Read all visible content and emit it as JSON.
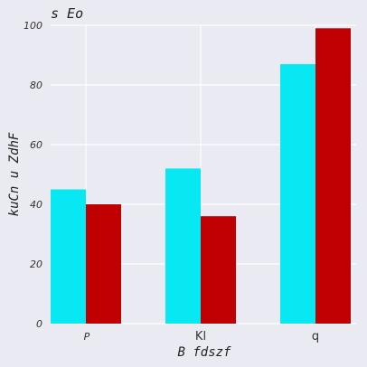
{
  "chart_data": {
    "type": "bar",
    "title": "s  Eo",
    "xlabel": "B fdszf",
    "ylabel": "kuCn  u ZdhF",
    "categories": [
      "P",
      "Kl",
      "q"
    ],
    "series": [
      {
        "values": [
          45,
          52,
          87
        ],
        "color": "#08e8f2"
      },
      {
        "values": [
          40,
          36,
          99
        ],
        "color": "#c00000"
      }
    ],
    "ylim": [
      0,
      100
    ],
    "yticks": [
      0,
      20,
      40,
      60,
      80,
      100
    ],
    "grid": true,
    "background": "#eaeaf2",
    "grid_color": "#ffffff"
  }
}
